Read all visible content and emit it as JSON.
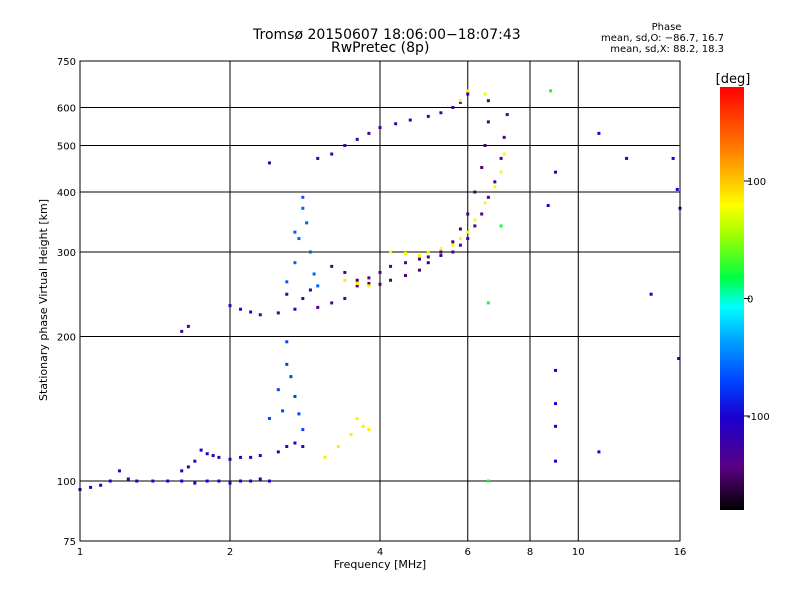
{
  "header": {
    "title_line1": "Tromsø 20150607 18:06:00−18:07:43",
    "title_line2": "RwPretec (8p)"
  },
  "phase_info": {
    "heading": "Phase",
    "line_o": "mean, sd,O: −86.7, 16.7",
    "line_x": "mean, sd,X: 88.2, 18.3"
  },
  "chart_data": {
    "type": "scatter",
    "xlabel": "Frequency [MHz]",
    "ylabel": "Stationary phase Virtual Height [km]",
    "x_scale": "log",
    "y_scale": "log",
    "xlim": [
      1,
      16
    ],
    "ylim": [
      75,
      750
    ],
    "x_ticks": [
      1,
      2,
      4,
      6,
      8,
      10,
      16
    ],
    "x_grid": [
      2,
      4,
      6,
      8,
      10
    ],
    "y_ticks": [
      75,
      100,
      200,
      300,
      400,
      500,
      600,
      750
    ],
    "y_grid": [
      100,
      200,
      300,
      400,
      500,
      600
    ],
    "grid": true,
    "colorbar": {
      "label": "[deg]",
      "range": [
        -180,
        180
      ],
      "ticks": [
        100,
        0,
        -100
      ]
    },
    "series": [
      {
        "color_deg": -105,
        "points": [
          [
            1.0,
            96
          ],
          [
            1.05,
            97
          ],
          [
            1.1,
            98
          ],
          [
            1.15,
            100
          ],
          [
            1.2,
            105
          ],
          [
            1.25,
            101
          ],
          [
            1.3,
            100
          ],
          [
            1.4,
            100
          ],
          [
            1.5,
            100
          ],
          [
            1.6,
            100
          ],
          [
            1.7,
            99
          ],
          [
            1.8,
            100
          ],
          [
            1.9,
            100
          ],
          [
            2.0,
            99
          ],
          [
            2.1,
            100
          ],
          [
            2.2,
            100
          ],
          [
            2.3,
            101
          ],
          [
            2.4,
            100
          ]
        ]
      },
      {
        "color_deg": -110,
        "points": [
          [
            1.6,
            105
          ],
          [
            1.65,
            107
          ],
          [
            1.7,
            110
          ],
          [
            1.75,
            116
          ],
          [
            1.8,
            114
          ],
          [
            1.85,
            113
          ],
          [
            1.9,
            112
          ],
          [
            2.0,
            111
          ],
          [
            2.1,
            112
          ],
          [
            2.2,
            112
          ],
          [
            2.3,
            113
          ],
          [
            2.5,
            115
          ],
          [
            2.6,
            118
          ],
          [
            2.7,
            120
          ],
          [
            2.8,
            118
          ]
        ]
      },
      {
        "color_deg": -120,
        "points": [
          [
            1.6,
            205
          ],
          [
            1.65,
            210
          ],
          [
            2.0,
            232
          ],
          [
            2.1,
            228
          ],
          [
            2.2,
            225
          ],
          [
            2.3,
            222
          ],
          [
            2.5,
            224
          ],
          [
            2.6,
            245
          ],
          [
            2.7,
            228
          ],
          [
            2.8,
            240
          ],
          [
            2.9,
            250
          ]
        ]
      },
      {
        "color_deg": -70,
        "points": [
          [
            2.4,
            135
          ],
          [
            2.5,
            155
          ],
          [
            2.55,
            140
          ],
          [
            2.6,
            175
          ],
          [
            2.6,
            195
          ],
          [
            2.65,
            165
          ],
          [
            2.7,
            150
          ],
          [
            2.75,
            138
          ],
          [
            2.8,
            128
          ]
        ]
      },
      {
        "color_deg": -60,
        "points": [
          [
            2.6,
            260
          ],
          [
            2.7,
            285
          ],
          [
            2.7,
            330
          ],
          [
            2.75,
            320
          ],
          [
            2.8,
            370
          ],
          [
            2.8,
            390
          ],
          [
            2.85,
            345
          ],
          [
            2.9,
            300
          ],
          [
            2.95,
            270
          ],
          [
            3.0,
            255
          ]
        ]
      },
      {
        "color_deg": -135,
        "points": [
          [
            3.0,
            230
          ],
          [
            3.2,
            235
          ],
          [
            3.4,
            240
          ],
          [
            3.6,
            255
          ],
          [
            3.8,
            265
          ],
          [
            4.0,
            272
          ],
          [
            4.2,
            280
          ],
          [
            4.5,
            285
          ],
          [
            4.8,
            290
          ],
          [
            5.0,
            293
          ],
          [
            5.3,
            295
          ],
          [
            5.6,
            300
          ],
          [
            5.8,
            310
          ],
          [
            6.0,
            320
          ],
          [
            6.2,
            340
          ],
          [
            6.4,
            360
          ],
          [
            6.6,
            390
          ],
          [
            6.8,
            420
          ],
          [
            7.0,
            470
          ],
          [
            7.1,
            520
          ],
          [
            7.2,
            580
          ]
        ]
      },
      {
        "color_deg": -150,
        "points": [
          [
            3.2,
            280
          ],
          [
            3.4,
            272
          ],
          [
            3.6,
            262
          ],
          [
            3.8,
            258
          ],
          [
            4.0,
            257
          ],
          [
            4.2,
            262
          ],
          [
            4.5,
            268
          ],
          [
            4.8,
            275
          ],
          [
            5.0,
            285
          ],
          [
            5.3,
            300
          ],
          [
            5.6,
            315
          ],
          [
            5.8,
            335
          ],
          [
            6.0,
            360
          ],
          [
            6.2,
            400
          ],
          [
            6.4,
            450
          ],
          [
            6.5,
            500
          ],
          [
            6.6,
            560
          ],
          [
            6.6,
            620
          ]
        ]
      },
      {
        "color_deg": -125,
        "points": [
          [
            3.0,
            470
          ],
          [
            3.2,
            480
          ],
          [
            3.4,
            500
          ],
          [
            3.6,
            515
          ],
          [
            3.8,
            530
          ],
          [
            4.0,
            545
          ],
          [
            4.3,
            555
          ],
          [
            4.6,
            565
          ],
          [
            5.0,
            575
          ],
          [
            5.3,
            585
          ],
          [
            5.6,
            600
          ],
          [
            5.8,
            615
          ],
          [
            6.0,
            640
          ]
        ]
      },
      {
        "color_deg": 85,
        "points": [
          [
            3.1,
            112
          ],
          [
            3.3,
            118
          ],
          [
            3.5,
            125
          ],
          [
            3.6,
            135
          ],
          [
            3.7,
            130
          ],
          [
            3.8,
            128
          ],
          [
            3.4,
            262
          ],
          [
            3.6,
            258
          ],
          [
            3.8,
            255
          ]
        ]
      },
      {
        "color_deg": 75,
        "points": [
          [
            4.2,
            300
          ],
          [
            4.5,
            298
          ],
          [
            4.8,
            295
          ],
          [
            5.0,
            300
          ],
          [
            5.3,
            305
          ],
          [
            5.6,
            310
          ],
          [
            5.8,
            320
          ],
          [
            6.0,
            330
          ],
          [
            6.2,
            350
          ],
          [
            6.5,
            380
          ],
          [
            6.8,
            410
          ],
          [
            7.0,
            440
          ],
          [
            7.1,
            480
          ],
          [
            6.5,
            640
          ],
          [
            5.8,
            620
          ],
          [
            6.0,
            650
          ]
        ]
      },
      {
        "color_deg": 20,
        "points": [
          [
            6.6,
            235
          ],
          [
            6.6,
            100
          ],
          [
            7.0,
            340
          ],
          [
            8.8,
            650
          ]
        ]
      },
      {
        "color_deg": -105,
        "points": [
          [
            8.7,
            375
          ],
          [
            9.0,
            440
          ],
          [
            9.0,
            170
          ],
          [
            9.0,
            145
          ],
          [
            9.0,
            130
          ],
          [
            9.0,
            110
          ],
          [
            11.0,
            530
          ],
          [
            11.0,
            115
          ],
          [
            12.5,
            470
          ],
          [
            14.0,
            245
          ],
          [
            15.5,
            470
          ],
          [
            15.8,
            405
          ],
          [
            16.0,
            370
          ],
          [
            15.9,
            180
          ],
          [
            2.4,
            460
          ]
        ]
      }
    ]
  }
}
